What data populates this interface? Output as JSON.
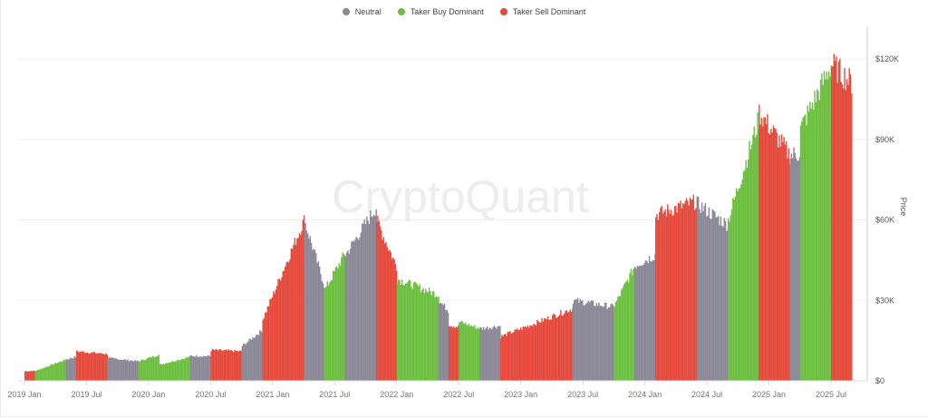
{
  "legend": [
    {
      "label": "Neutral",
      "color": "#8a8796"
    },
    {
      "label": "Taker Buy Dominant",
      "color": "#6cbf3f"
    },
    {
      "label": "Taker Sell Dominant",
      "color": "#e5493a"
    }
  ],
  "watermark": "CryptoQuant",
  "y_axis": {
    "label": "Price",
    "ticks": [
      "$0",
      "$30K",
      "$60K",
      "$90K",
      "$120K"
    ]
  },
  "x_axis": {
    "ticks": [
      "2019 Jan",
      "2019 Jul",
      "2020 Jan",
      "2020 Jul",
      "2021 Jan",
      "2021 Jul",
      "2022 Jan",
      "2022 Jul",
      "2023 Jan",
      "2023 Jul",
      "2024 Jan",
      "2024 Jul",
      "2025 Jan",
      "2025 Jul"
    ]
  },
  "chart_data": {
    "type": "bar",
    "title": "",
    "xlabel": "",
    "ylabel": "Price",
    "ylim": [
      0,
      130000
    ],
    "legend_position": "top",
    "grid": true,
    "series_names": [
      "Neutral",
      "Taker Buy Dominant",
      "Taker Sell Dominant"
    ],
    "segments": [
      {
        "start": "2019-01",
        "end": "2019-02",
        "regime": "Taker Sell Dominant",
        "price_start": 3600,
        "price_end": 3700
      },
      {
        "start": "2019-02",
        "end": "2019-05",
        "regime": "Taker Buy Dominant",
        "price_start": 3700,
        "price_end": 8000
      },
      {
        "start": "2019-05",
        "end": "2019-06",
        "regime": "Neutral",
        "price_start": 8000,
        "price_end": 9000
      },
      {
        "start": "2019-06",
        "end": "2019-09",
        "regime": "Taker Sell Dominant",
        "price_start": 11000,
        "price_end": 10000
      },
      {
        "start": "2019-09",
        "end": "2019-12",
        "regime": "Neutral",
        "price_start": 8500,
        "price_end": 7300
      },
      {
        "start": "2019-12",
        "end": "2020-02",
        "regime": "Taker Buy Dominant",
        "price_start": 7300,
        "price_end": 9800
      },
      {
        "start": "2020-02",
        "end": "2020-05",
        "regime": "Taker Buy Dominant",
        "price_start": 6000,
        "price_end": 9000
      },
      {
        "start": "2020-05",
        "end": "2020-07",
        "regime": "Neutral",
        "price_start": 9300,
        "price_end": 9200
      },
      {
        "start": "2020-07",
        "end": "2020-10",
        "regime": "Taker Sell Dominant",
        "price_start": 11500,
        "price_end": 11000
      },
      {
        "start": "2020-10",
        "end": "2020-12",
        "regime": "Neutral",
        "price_start": 13000,
        "price_end": 19000
      },
      {
        "start": "2020-12",
        "end": "2021-04",
        "regime": "Taker Sell Dominant",
        "price_start": 23000,
        "price_end": 60000
      },
      {
        "start": "2021-04",
        "end": "2021-06",
        "regime": "Neutral",
        "price_start": 60000,
        "price_end": 35000
      },
      {
        "start": "2021-06",
        "end": "2021-08",
        "regime": "Taker Buy Dominant",
        "price_start": 34000,
        "price_end": 48000
      },
      {
        "start": "2021-08",
        "end": "2021-11",
        "regime": "Neutral",
        "price_start": 47000,
        "price_end": 65000
      },
      {
        "start": "2021-11",
        "end": "2022-01",
        "regime": "Taker Sell Dominant",
        "price_start": 60000,
        "price_end": 42000
      },
      {
        "start": "2022-01",
        "end": "2022-05",
        "regime": "Taker Buy Dominant",
        "price_start": 38000,
        "price_end": 32000
      },
      {
        "start": "2022-05",
        "end": "2022-06",
        "regime": "Neutral",
        "price_start": 30000,
        "price_end": 26000
      },
      {
        "start": "2022-06",
        "end": "2022-07",
        "regime": "Taker Sell Dominant",
        "price_start": 21000,
        "price_end": 20000
      },
      {
        "start": "2022-07",
        "end": "2022-09",
        "regime": "Taker Buy Dominant",
        "price_start": 22000,
        "price_end": 19500
      },
      {
        "start": "2022-09",
        "end": "2022-11",
        "regime": "Neutral",
        "price_start": 19500,
        "price_end": 20500
      },
      {
        "start": "2022-11",
        "end": "2023-06",
        "regime": "Taker Sell Dominant",
        "price_start": 16500,
        "price_end": 27000
      },
      {
        "start": "2023-06",
        "end": "2023-10",
        "regime": "Neutral",
        "price_start": 30000,
        "price_end": 27500
      },
      {
        "start": "2023-10",
        "end": "2023-12",
        "regime": "Taker Buy Dominant",
        "price_start": 28000,
        "price_end": 43000
      },
      {
        "start": "2023-12",
        "end": "2024-02",
        "regime": "Neutral",
        "price_start": 43000,
        "price_end": 47000
      },
      {
        "start": "2024-02",
        "end": "2024-06",
        "regime": "Taker Sell Dominant",
        "price_start": 62000,
        "price_end": 67000
      },
      {
        "start": "2024-06",
        "end": "2024-09",
        "regime": "Neutral",
        "price_start": 66000,
        "price_end": 58000
      },
      {
        "start": "2024-09",
        "end": "2024-12",
        "regime": "Taker Buy Dominant",
        "price_start": 60000,
        "price_end": 98000
      },
      {
        "start": "2024-12",
        "end": "2025-03",
        "regime": "Taker Sell Dominant",
        "price_start": 100000,
        "price_end": 84000
      },
      {
        "start": "2025-03",
        "end": "2025-04",
        "regime": "Neutral",
        "price_start": 84000,
        "price_end": 85000
      },
      {
        "start": "2025-04",
        "end": "2025-07",
        "regime": "Taker Buy Dominant",
        "price_start": 94000,
        "price_end": 118000
      },
      {
        "start": "2025-07",
        "end": "2025-09",
        "regime": "Taker Sell Dominant",
        "price_start": 118000,
        "price_end": 111000
      }
    ]
  }
}
